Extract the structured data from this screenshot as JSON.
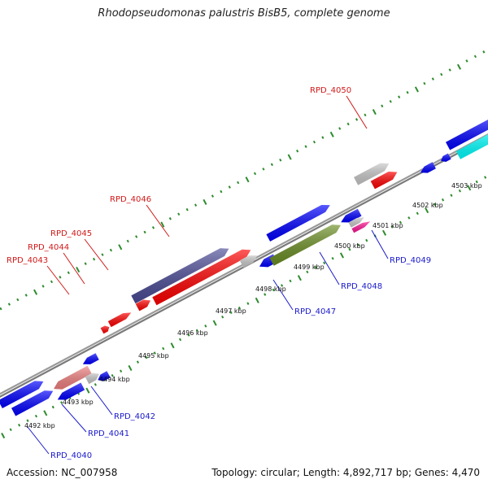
{
  "title": "Rhodopseudomonas palustris BisB5, complete genome",
  "accession": "Accession: NC_007958",
  "stats": "Topology: circular; Length: 4,892,717 bp; Genes: 4,470",
  "colors": {
    "backbone": "#8c8c8c",
    "ticks": "#2e8b2e",
    "label_forward": "#d11a1a",
    "label_reverse": "#1a1acc",
    "cds_red": "#ff0000",
    "cds_blue": "#0000ff",
    "cds_gray": "#c8c8c8",
    "cds_navy": "#4b4b96",
    "cds_olive": "#6b8e23",
    "cds_pink": "#f08080",
    "cds_magenta": "#ff1493",
    "cds_cyan": "#00ffff"
  },
  "kbp_labels": [
    "4492 kbp",
    "4493 kbp",
    "4494 kbp",
    "4495 kbp",
    "4496 kbp",
    "4497 kbp",
    "4498 kbp",
    "4499 kbp",
    "4500 kbp",
    "4501 kbp",
    "4502 kbp",
    "4503 kbp"
  ],
  "genes_forward": [
    "RPD_4043",
    "RPD_4044",
    "RPD_4045",
    "RPD_4046",
    "RPD_4050"
  ],
  "genes_reverse": [
    "RPD_4040",
    "RPD_4041",
    "RPD_4042",
    "RPD_4047",
    "RPD_4048",
    "RPD_4049"
  ]
}
